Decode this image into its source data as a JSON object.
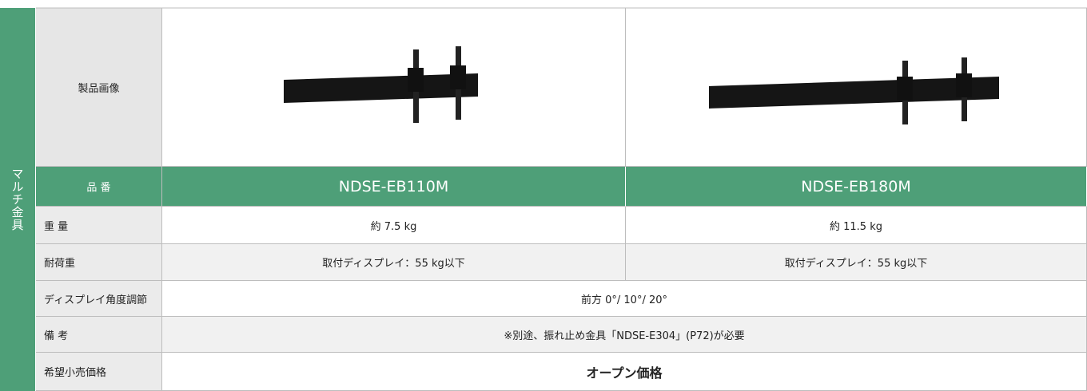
{
  "category": "マルチ金具",
  "table": {
    "rows": [
      {
        "label": "製品画像"
      },
      {
        "label": "品 番",
        "cells": [
          "NDSE-EB110M",
          "NDSE-EB180M"
        ]
      },
      {
        "label": "重 量",
        "cells": [
          "約 7.5 kg",
          "約 11.5 kg"
        ]
      },
      {
        "label": "耐荷重",
        "cells": [
          "取付ディスプレイ：55 kg以下",
          "取付ディスプレイ：55 kg以下"
        ]
      },
      {
        "label": "ディスプレイ角度調節",
        "cells": [
          "前方 0°/ 10°/ 20°"
        ]
      },
      {
        "label": "備 考",
        "cells": [
          "※別途、振れ止め金具「NDSE-E304」(P72)が必要"
        ]
      },
      {
        "label": "希望小売価格",
        "cells": [
          "オープン価格"
        ]
      }
    ]
  }
}
